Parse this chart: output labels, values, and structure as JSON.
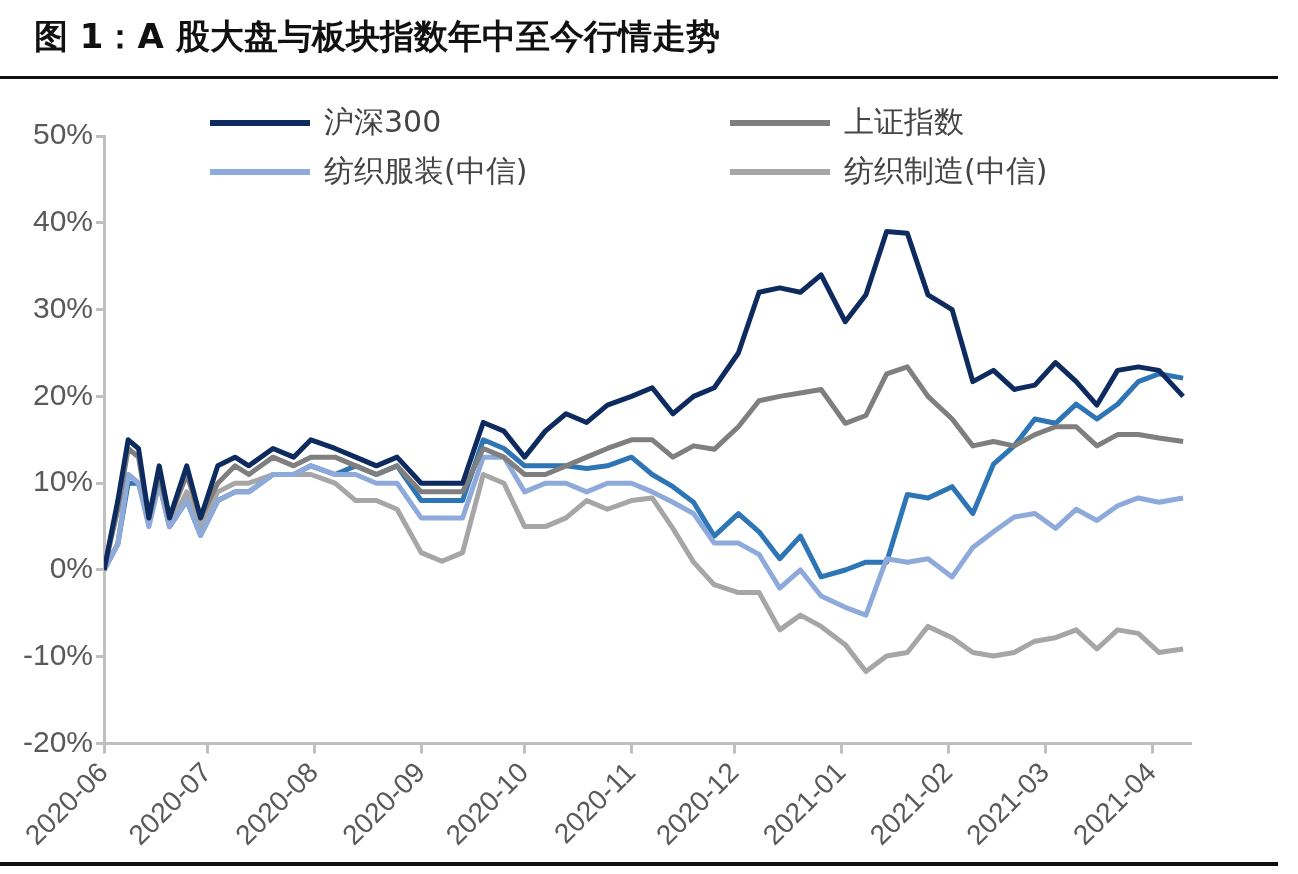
{
  "chart_data": {
    "type": "line",
    "title": "图 1：A 股大盘与板块指数年中至今行情走势",
    "x": [
      "2020-06-01",
      "2020-06-05",
      "2020-06-08",
      "2020-06-11",
      "2020-06-14",
      "2020-06-17",
      "2020-06-20",
      "2020-06-25",
      "2020-06-29",
      "2020-07-04",
      "2020-07-09",
      "2020-07-13",
      "2020-07-20",
      "2020-07-26",
      "2020-07-31",
      "2020-08-07",
      "2020-08-13",
      "2020-08-19",
      "2020-08-25",
      "2020-09-01",
      "2020-09-07",
      "2020-09-13",
      "2020-09-19",
      "2020-09-25",
      "2020-10-01",
      "2020-10-07",
      "2020-10-13",
      "2020-10-19",
      "2020-10-25",
      "2020-11-01",
      "2020-11-07",
      "2020-11-13",
      "2020-11-19",
      "2020-11-25",
      "2020-12-02",
      "2020-12-08",
      "2020-12-14",
      "2020-12-20",
      "2020-12-26",
      "2021-01-02",
      "2021-01-08",
      "2021-01-14",
      "2021-01-20",
      "2021-01-26",
      "2021-02-02",
      "2021-02-08",
      "2021-02-14",
      "2021-02-20",
      "2021-02-26",
      "2021-03-04",
      "2021-03-10",
      "2021-03-16",
      "2021-03-22",
      "2021-03-28",
      "2021-04-03",
      "2021-04-10"
    ],
    "series": [
      {
        "name": "沪深300",
        "color": "#0d2b5e",
        "values": [
          0,
          8,
          15,
          14,
          6,
          12,
          6,
          12,
          6,
          12,
          13,
          12,
          14,
          13,
          15,
          14,
          13,
          12,
          13,
          10,
          10,
          10,
          17,
          16,
          13,
          16,
          18,
          17,
          19,
          20,
          21,
          18,
          20,
          21,
          25,
          32,
          32.5,
          32,
          34,
          28.6,
          31.7,
          39,
          38.8,
          31.7,
          30,
          21.7,
          23,
          20.8,
          21.3,
          23.9,
          21.7,
          19,
          23,
          23.4,
          23,
          20
        ]
      },
      {
        "name": "上证指数",
        "color": "#7f7f7f",
        "values": [
          0,
          7,
          14,
          13,
          6,
          11,
          6,
          11,
          6,
          10,
          12,
          11,
          13,
          12,
          13,
          13,
          12,
          11,
          12,
          9,
          9,
          9,
          14,
          13,
          11,
          11,
          12,
          13,
          14,
          15,
          15,
          13,
          14.3,
          13.9,
          16.5,
          19.5,
          20,
          20.4,
          20.8,
          16.9,
          17.8,
          22.6,
          23.4,
          20,
          17.4,
          14.3,
          14.8,
          14.3,
          15.6,
          16.5,
          16.5,
          14.3,
          15.6,
          15.6,
          15.2,
          14.8
        ]
      },
      {
        "name": "纺织服装(中信)",
        "color": "#8eaadb",
        "values": [
          0,
          3,
          11,
          10,
          5,
          10,
          5,
          8,
          4,
          8,
          9,
          9,
          11,
          11,
          12,
          11,
          11,
          10,
          10,
          6,
          6,
          6,
          13,
          13,
          9,
          10,
          10,
          9,
          10,
          10,
          9,
          7.8,
          6.5,
          3.1,
          3.1,
          1.8,
          -2.1,
          0,
          -3,
          -4.3,
          -5.2,
          1.3,
          0.9,
          1.3,
          -0.8,
          2.6,
          4.4,
          6.1,
          6.5,
          4.8,
          7,
          5.7,
          7.4,
          8.3,
          7.8,
          8.3
        ]
      },
      {
        "name": "纺织制造(中信)",
        "color": "#a6a6a6",
        "values": [
          0,
          3,
          11,
          10,
          6,
          10,
          5,
          9,
          5,
          9,
          10,
          10,
          11,
          11,
          11,
          10,
          8,
          8,
          7,
          2,
          1,
          2,
          11,
          10,
          5,
          5,
          6,
          8,
          7,
          8,
          8.3,
          4.8,
          0.9,
          -1.7,
          -2.6,
          -2.6,
          -6.9,
          -5.2,
          -6.5,
          -8.6,
          -11.7,
          -9.9,
          -9.5,
          -6.5,
          -7.8,
          -9.5,
          -9.9,
          -9.5,
          -8.2,
          -7.8,
          -6.9,
          -9.1,
          -6.9,
          -7.3,
          -9.5,
          -9.1
        ]
      },
      {
        "color": "#2e75b6",
        "values": [
          0,
          3,
          10,
          10,
          6,
          10,
          5,
          8,
          4,
          8,
          9,
          9,
          11,
          11,
          12,
          11,
          12,
          11,
          12,
          8,
          8,
          8,
          15,
          14,
          12,
          12,
          12,
          11.7,
          12,
          13,
          11,
          9.6,
          7.8,
          3.9,
          6.5,
          4.4,
          1.3,
          3.9,
          -0.8,
          0,
          0.9,
          0.9,
          8.7,
          8.3,
          9.6,
          6.5,
          12.2,
          14.3,
          17.4,
          16.9,
          19.1,
          17.4,
          19.1,
          21.7,
          22.6,
          22.1
        ]
      }
    ],
    "xlim": [
      "2020-06-01",
      "2021-04-12"
    ],
    "xticks": [
      {
        "value": "2020-06-01",
        "label": "2020-06"
      },
      {
        "value": "2020-07-01",
        "label": "2020-07"
      },
      {
        "value": "2020-08-01",
        "label": "2020-08"
      },
      {
        "value": "2020-09-01",
        "label": "2020-09"
      },
      {
        "value": "2020-10-01",
        "label": "2020-10"
      },
      {
        "value": "2020-11-01",
        "label": "2020-11"
      },
      {
        "value": "2020-12-01",
        "label": "2020-12"
      },
      {
        "value": "2021-01-01",
        "label": "2021-01"
      },
      {
        "value": "2021-02-01",
        "label": "2021-02"
      },
      {
        "value": "2021-03-01",
        "label": "2021-03"
      },
      {
        "value": "2021-04-01",
        "label": "2021-04"
      }
    ],
    "ylim": [
      -20,
      50
    ],
    "yticks": [
      {
        "value": -20,
        "label": "-20%"
      },
      {
        "value": -10,
        "label": "-10%"
      },
      {
        "value": 0,
        "label": "0%"
      },
      {
        "value": 10,
        "label": "10%"
      },
      {
        "value": 20,
        "label": "20%"
      },
      {
        "value": 30,
        "label": "30%"
      },
      {
        "value": 40,
        "label": "40%"
      },
      {
        "value": 50,
        "label": "50%"
      }
    ],
    "grid": false,
    "legend": "top",
    "marker": "none",
    "line_style": "solid"
  }
}
